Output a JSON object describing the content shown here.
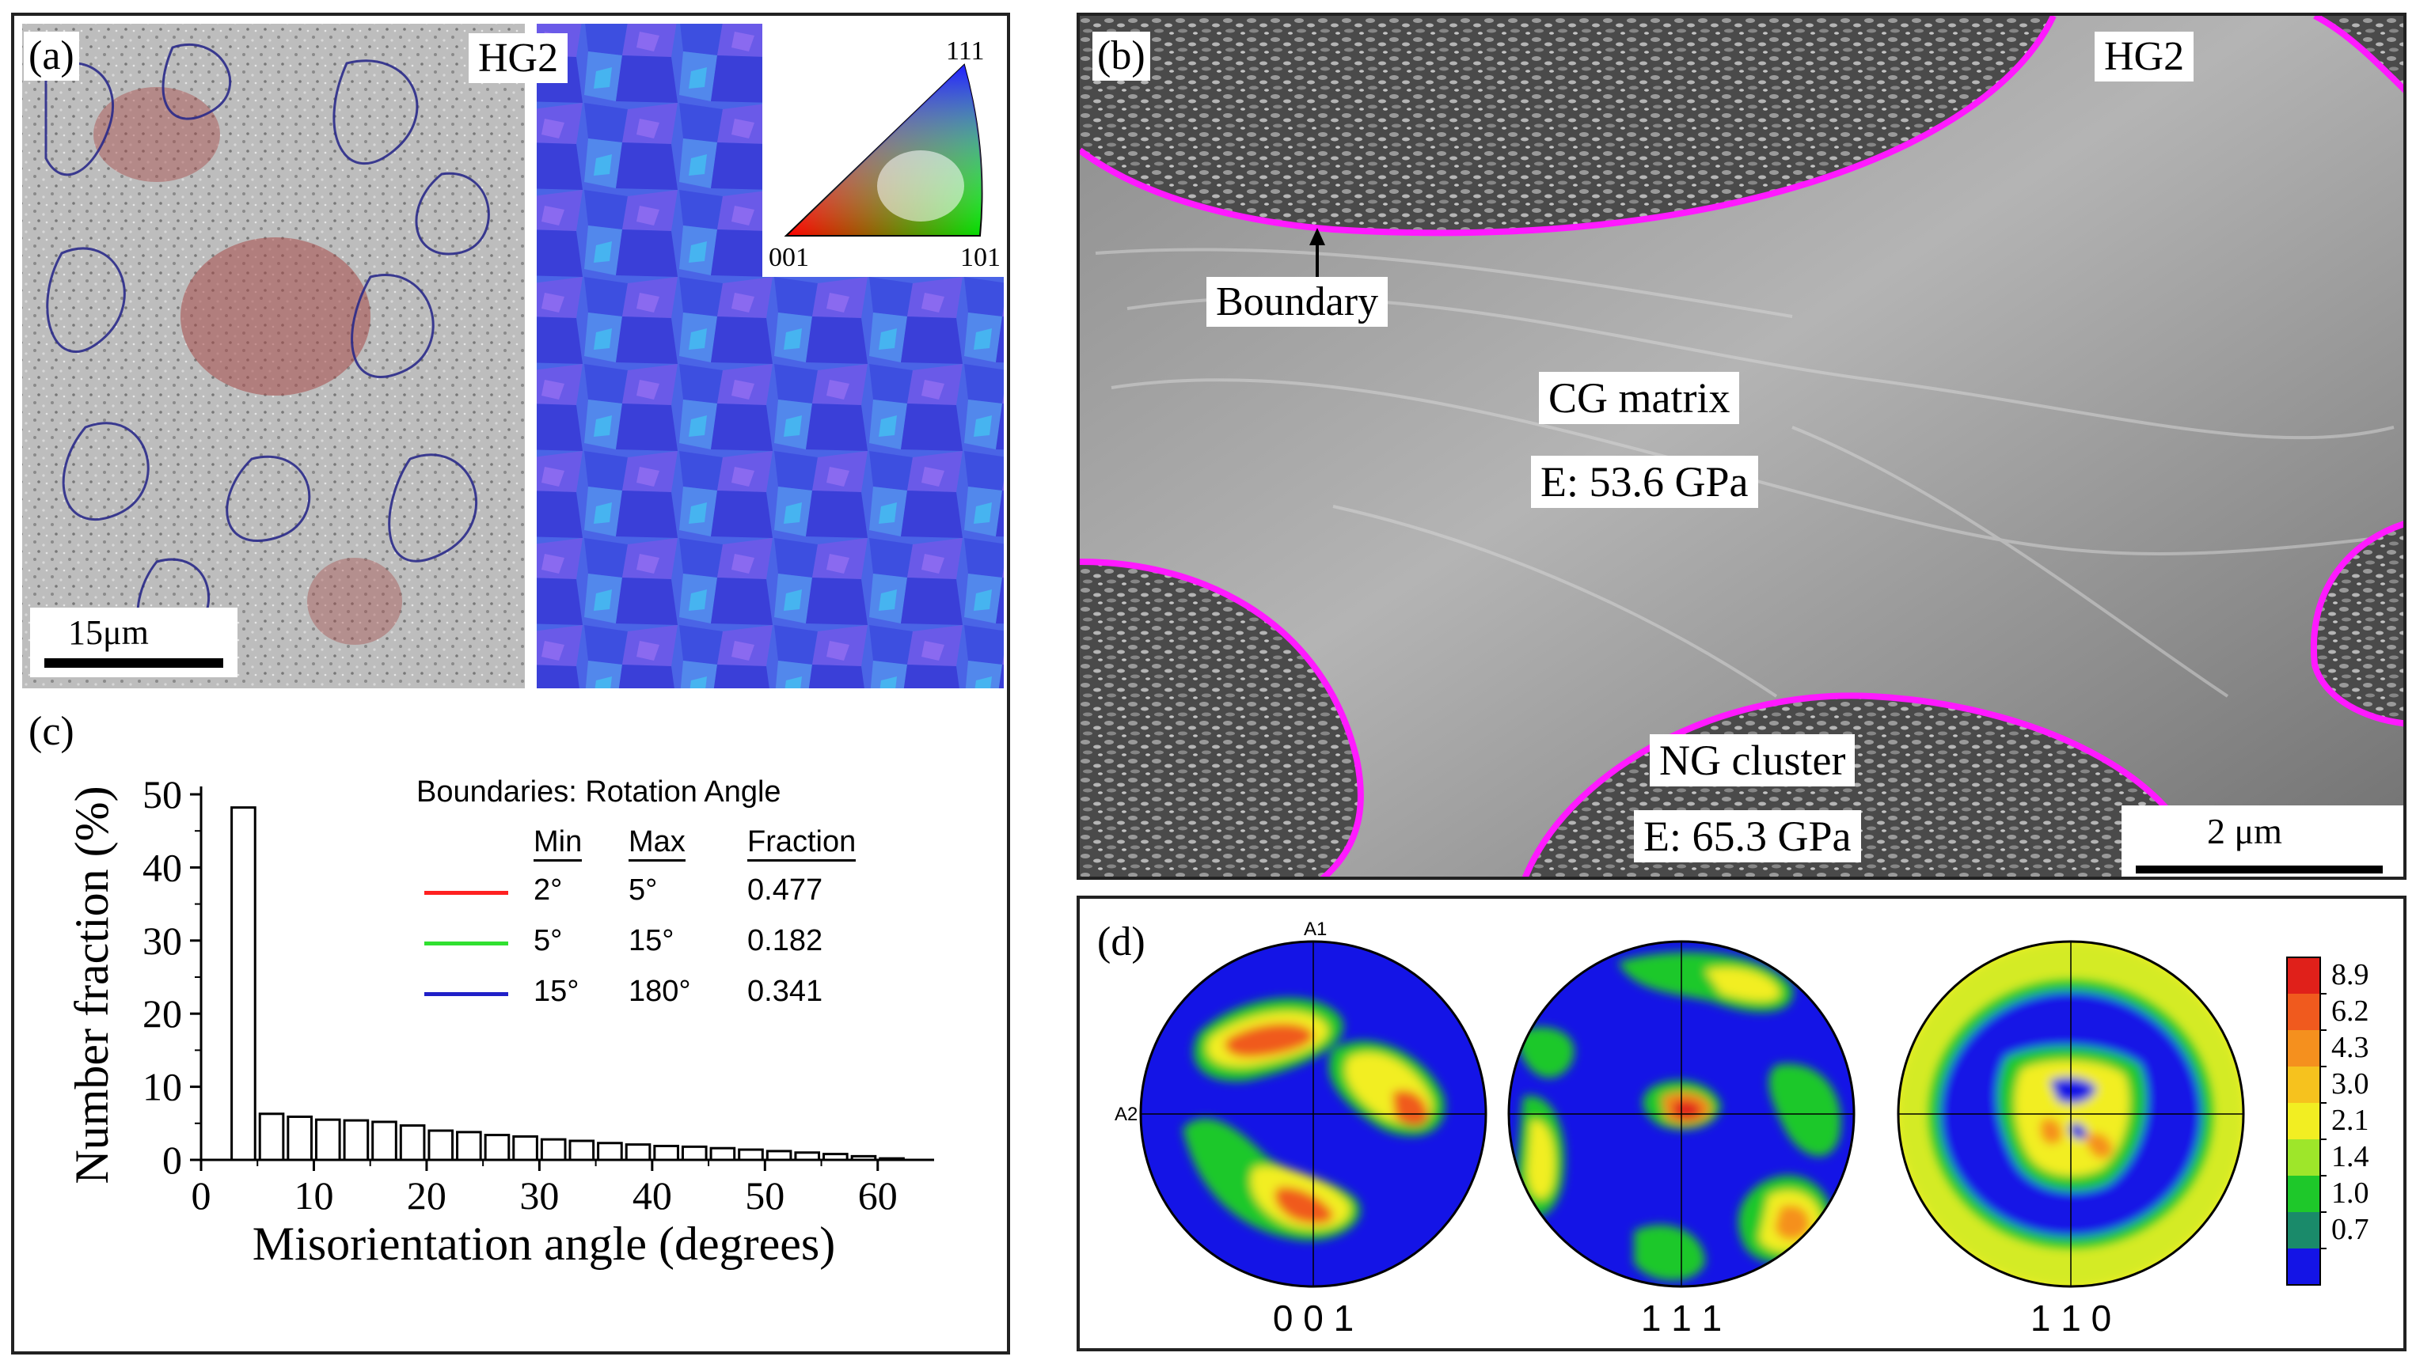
{
  "panel_a": {
    "label": "(a)",
    "sample": "HG2",
    "scale_bar": "15μm",
    "ipf_key": {
      "top": "111",
      "bottom_left": "001",
      "bottom_right": "101"
    }
  },
  "panel_b": {
    "label": "(b)",
    "sample": "HG2",
    "boundary_label": "Boundary",
    "cg_label": "CG matrix",
    "cg_modulus": "E: 53.6 GPa",
    "ng_label": "NG cluster",
    "ng_modulus": "E: 65.3 GPa",
    "scale_bar": "2 μm"
  },
  "panel_c": {
    "label": "(c)",
    "legend_title": "Boundaries: Rotation Angle",
    "legend_headers": [
      "Min",
      "Max",
      "Fraction"
    ],
    "legend_rows": [
      {
        "min": "2°",
        "max": "5°",
        "fraction": "0.477",
        "color": "#ff2020"
      },
      {
        "min": "5°",
        "max": "15°",
        "fraction": "0.182",
        "color": "#30e030"
      },
      {
        "min": "15°",
        "max": "180°",
        "fraction": "0.341",
        "color": "#2020c8"
      }
    ]
  },
  "panel_d": {
    "label": "(d)",
    "axis_a1": "A1",
    "axis_a2": "A2",
    "pole_figures": [
      "0 0 1",
      "1 1 1",
      "1 1 0"
    ],
    "colorbar_ticks": [
      "8.9",
      "6.2",
      "4.3",
      "3.0",
      "2.1",
      "1.4",
      "1.0",
      "0.7"
    ],
    "colorbar_colors": [
      "#e0201a",
      "#f05a1e",
      "#f5901e",
      "#f6c21e",
      "#f2ee22",
      "#9ee62a",
      "#1ec82a",
      "#1a8a6a",
      "#1414e6"
    ]
  },
  "chart_data": {
    "type": "bar",
    "xlabel": "Misorientation angle (degrees)",
    "ylabel": "Number fraction (%)",
    "xlim": [
      0,
      65
    ],
    "ylim": [
      0,
      50
    ],
    "xticks": [
      "0",
      "10",
      "20",
      "30",
      "40",
      "50",
      "60"
    ],
    "yticks": [
      "0",
      "10",
      "20",
      "30",
      "40",
      "50"
    ],
    "bin_width": 2.5,
    "x": [
      3.75,
      6.25,
      8.75,
      11.25,
      13.75,
      16.25,
      18.75,
      21.25,
      23.75,
      26.25,
      28.75,
      31.25,
      33.75,
      36.25,
      38.75,
      41.25,
      43.75,
      46.25,
      48.75,
      51.25,
      53.75,
      56.25,
      58.75,
      61.25
    ],
    "values": [
      48.2,
      6.3,
      5.9,
      5.5,
      5.4,
      5.2,
      4.7,
      4.0,
      3.8,
      3.4,
      3.2,
      2.8,
      2.6,
      2.3,
      2.1,
      1.9,
      1.8,
      1.6,
      1.4,
      1.2,
      1.0,
      0.8,
      0.5,
      0.2
    ]
  }
}
